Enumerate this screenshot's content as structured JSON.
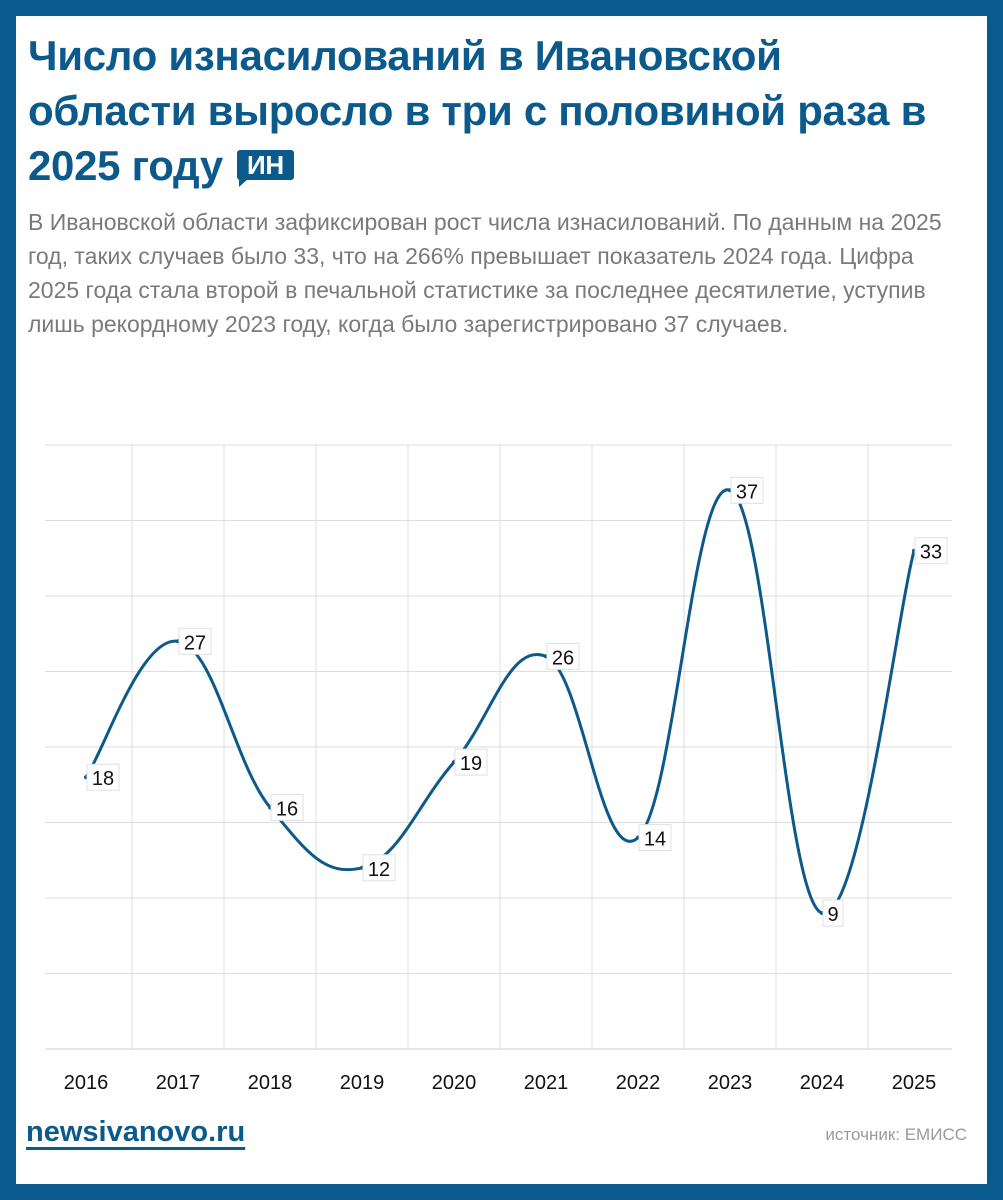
{
  "title": "Число изнасилований в Ивановской области выросло в три с половиной раза в 2025 году",
  "logo_text": "ИН",
  "description": "В Ивановской области зафиксирован  рост числа  изнасилований. По данным на 2025 год, таких случаев было 33, что на 266% превышает показатель 2024 года. Цифра 2025 года стала второй в печальной статистике за последнее десятилетие, уступив лишь рекордному 2023 году, когда было зарегистрировано 37 случаев.",
  "footer": {
    "site": "newsivanovo.ru",
    "source": "источник: ЕМИСС"
  },
  "colors": {
    "frame": "#0b5a8f",
    "title": "#0c5a8c",
    "line": "#0d5a8a",
    "grid": "#dddddd"
  },
  "chart_data": {
    "type": "line",
    "smooth": true,
    "categories": [
      "2016",
      "2017",
      "2018",
      "2019",
      "2020",
      "2021",
      "2022",
      "2023",
      "2024",
      "2025"
    ],
    "values": [
      18,
      27,
      16,
      12,
      19,
      26,
      14,
      37,
      9,
      33
    ],
    "data_labels": true,
    "ylim": [
      0,
      40
    ],
    "y_grid_step": 5,
    "grid": true,
    "y_tick_labels_shown": false
  }
}
